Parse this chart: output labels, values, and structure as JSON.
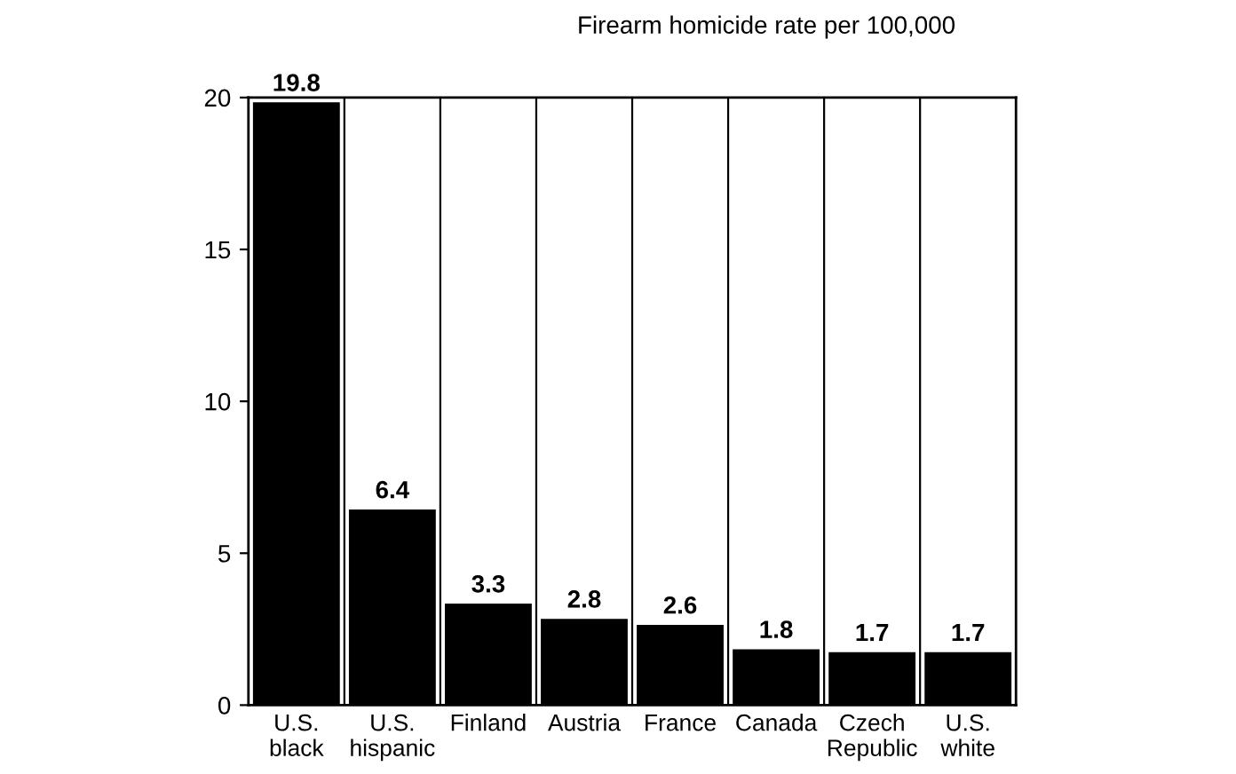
{
  "chart_data": {
    "type": "bar",
    "title": "Firearm homicide rate per 100,000",
    "categories": [
      "U.S.\nblack",
      "U.S.\nhispanic",
      "Finland",
      "Austria",
      "France",
      "Canada",
      "Czech\nRepublic",
      "U.S.\nwhite"
    ],
    "values": [
      19.8,
      6.4,
      3.3,
      2.8,
      2.6,
      1.8,
      1.7,
      1.7
    ],
    "color": "#000000",
    "ylim": [
      0,
      20
    ],
    "yticks": [
      0,
      5,
      10,
      15,
      20
    ],
    "grid": "x",
    "data_labels": true
  }
}
